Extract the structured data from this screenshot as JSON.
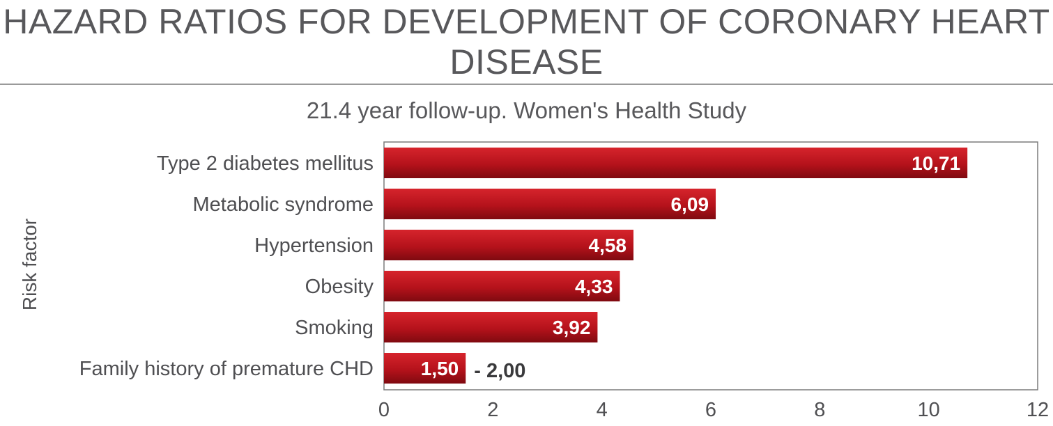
{
  "chart_data": {
    "type": "bar",
    "orientation": "horizontal",
    "title": "HAZARD RATIOS FOR DEVELOPMENT OF CORONARY HEART DISEASE",
    "subtitle": "21.4 year follow-up. Women's Health Study",
    "ylabel": "Risk factor",
    "xlabel": "",
    "categories": [
      "Type 2 diabetes mellitus",
      "Metabolic syndrome",
      "Hypertension",
      "Obesity",
      "Smoking",
      "Family history of premature CHD"
    ],
    "values": [
      10.71,
      6.09,
      4.58,
      4.33,
      3.92,
      1.5
    ],
    "value_labels": [
      "10,71",
      "6,09",
      "4,58",
      "4,33",
      "3,92",
      "1,50"
    ],
    "range_note": "- 2,00",
    "xlim": [
      0,
      12
    ],
    "xticks": [
      0,
      2,
      4,
      6,
      8,
      10,
      12
    ],
    "bar_color": "#b5121b",
    "grid": false
  }
}
